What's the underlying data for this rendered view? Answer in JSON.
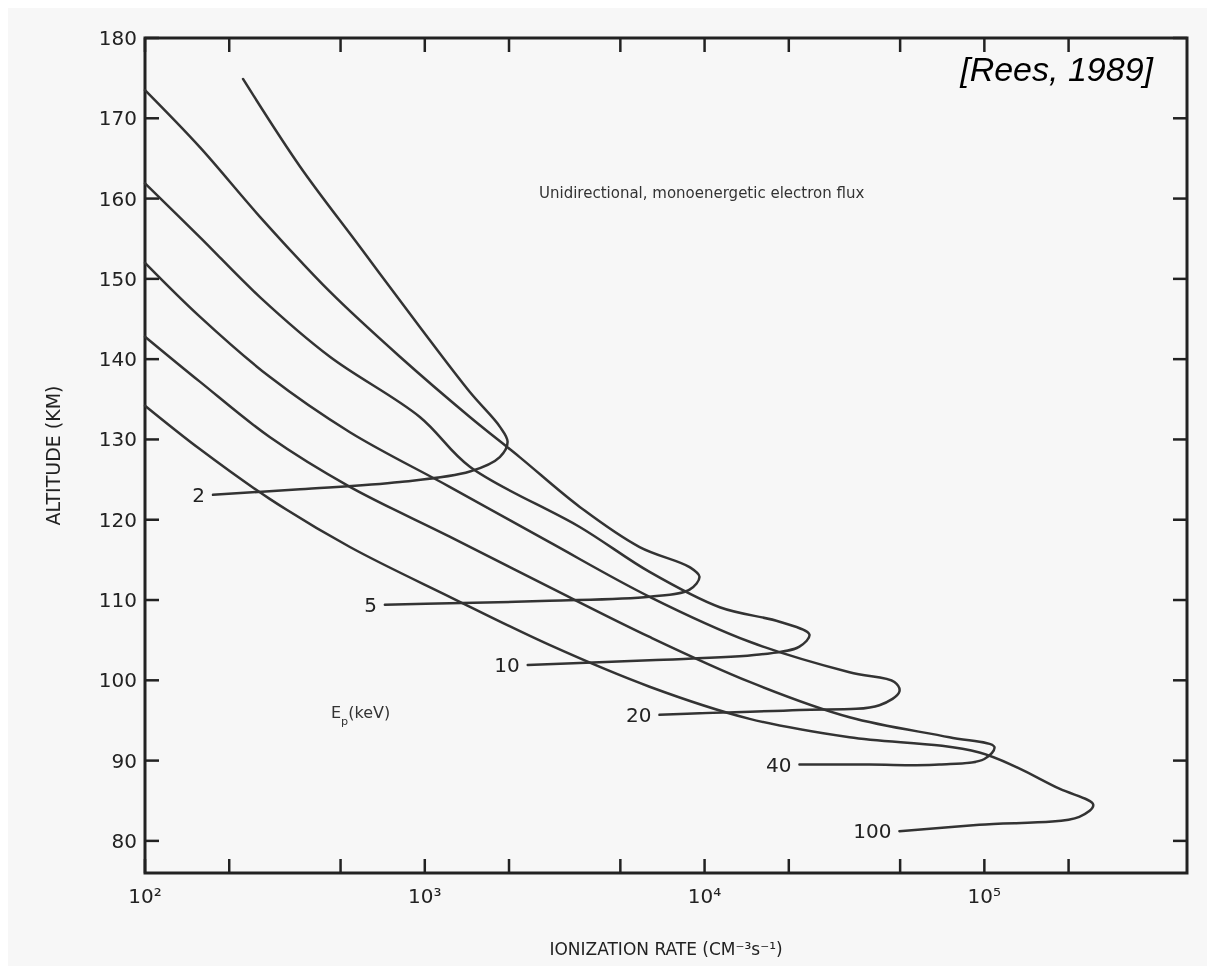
{
  "chart_data": {
    "type": "line",
    "xlabel": "IONIZATION RATE (CM⁻³s⁻¹)",
    "ylabel": "ALTITUDE (KM)",
    "log": "x",
    "grid": false,
    "line_style": "solid",
    "xlim": [
      100,
      530000
    ],
    "ylim": [
      76,
      180
    ],
    "xticks": [
      {
        "value": 100,
        "label": "10²"
      },
      {
        "value": 200,
        "label": null
      },
      {
        "value": 500,
        "label": null
      },
      {
        "value": 1000,
        "label": "10³"
      },
      {
        "value": 2000,
        "label": null
      },
      {
        "value": 5000,
        "label": null
      },
      {
        "value": 10000,
        "label": "10⁴"
      },
      {
        "value": 20000,
        "label": null
      },
      {
        "value": 50000,
        "label": null
      },
      {
        "value": 100000,
        "label": "10⁵"
      },
      {
        "value": 200000,
        "label": null
      }
    ],
    "yticks": [
      80,
      90,
      100,
      110,
      120,
      130,
      140,
      150,
      160,
      170,
      180
    ],
    "annotations": [
      "[Rees, 1989]",
      "Unidirectional, monoenergetic electron flux",
      "E$_{p}$(keV)"
    ],
    "series": [
      {
        "name": "2",
        "color": "#333333",
        "x": [
          224,
          358,
          586,
          960,
          1449,
          1854,
          1977,
          1854,
          1449,
          815,
          358,
          175
        ],
        "values": [
          174.9,
          164.0,
          154.0,
          144.0,
          135.9,
          131.6,
          129.7,
          127.8,
          126.0,
          124.7,
          123.8,
          123.1
        ]
      },
      {
        "name": "5",
        "color": "#333333",
        "x": [
          100,
          157,
          258,
          458,
          815,
          1449,
          2183,
          3580,
          5860,
          8840,
          9590,
          8840,
          6360,
          2790,
          1227,
          720
        ],
        "values": [
          173.5,
          166.4,
          157.7,
          148.4,
          140.3,
          132.8,
          127.8,
          121.6,
          116.6,
          114.1,
          112.9,
          111.3,
          110.4,
          109.9,
          109.6,
          109.4
        ]
      },
      {
        "name": "10",
        "color": "#333333",
        "x": [
          100,
          157,
          258,
          458,
          960,
          1449,
          3580,
          6360,
          11330,
          18540,
          23700,
          21830,
          15700,
          6360,
          2333
        ],
        "values": [
          161.9,
          155.2,
          147.7,
          140.3,
          132.8,
          126.6,
          119.1,
          113.5,
          109.1,
          107.3,
          105.7,
          104.2,
          103.2,
          102.5,
          101.9
        ]
      },
      {
        "name": "20",
        "color": "#333333",
        "x": [
          100,
          157,
          279,
          540,
          1227,
          2790,
          6360,
          14490,
          32960,
          47700,
          49700,
          42170,
          21830,
          9590,
          6900
        ],
        "values": [
          152.0,
          145.3,
          137.8,
          130.9,
          124.1,
          117.2,
          110.4,
          104.8,
          101.0,
          99.8,
          98.6,
          96.9,
          96.3,
          95.9,
          95.7
        ]
      },
      {
        "name": "40",
        "color": "#333333",
        "x": [
          100,
          157,
          279,
          540,
          1227,
          2790,
          6360,
          14490,
          32960,
          75000,
          108600,
          100000,
          69000,
          38800,
          21830
        ],
        "values": [
          142.8,
          137.2,
          130.3,
          124.1,
          117.9,
          111.6,
          105.4,
          99.8,
          95.4,
          92.9,
          91.7,
          90.2,
          89.5,
          89.5,
          89.5
        ]
      },
      {
        "name": "100",
        "color": "#333333",
        "x": [
          100,
          157,
          279,
          540,
          1227,
          2790,
          6360,
          14490,
          32960,
          96000,
          185400,
          245000,
          218500,
          96000,
          49700
        ],
        "values": [
          134.2,
          128.8,
          122.6,
          116.6,
          110.4,
          104.4,
          99.2,
          95.2,
          92.9,
          91.0,
          86.5,
          84.5,
          83.0,
          82.0,
          81.2
        ]
      }
    ]
  }
}
